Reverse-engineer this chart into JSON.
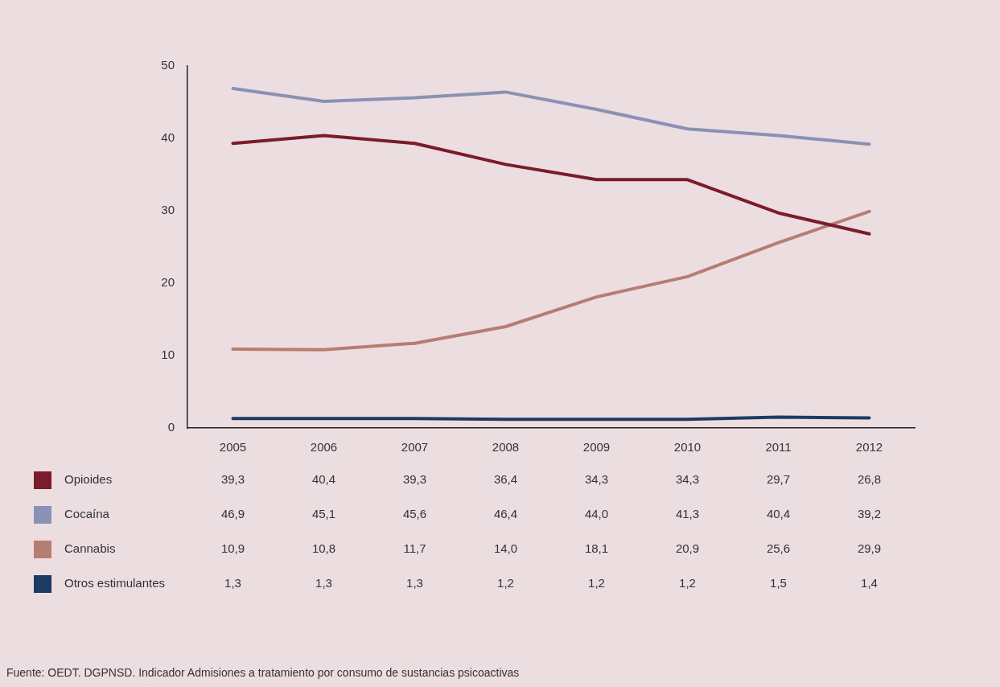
{
  "chart_data": {
    "type": "line",
    "categories": [
      "2005",
      "2006",
      "2007",
      "2008",
      "2009",
      "2010",
      "2011",
      "2012"
    ],
    "series": [
      {
        "name": "Opioides",
        "color": "#7a1c2a",
        "values": [
          39.3,
          40.4,
          39.3,
          36.4,
          34.3,
          34.3,
          29.7,
          26.8
        ],
        "value_labels": [
          "39,3",
          "40,4",
          "39,3",
          "36,4",
          "34,3",
          "34,3",
          "29,7",
          "26,8"
        ]
      },
      {
        "name": "Cocaína",
        "color": "#8a91b5",
        "values": [
          46.9,
          45.1,
          45.6,
          46.4,
          44.0,
          41.3,
          40.4,
          39.2
        ],
        "value_labels": [
          "46,9",
          "45,1",
          "45,6",
          "46,4",
          "44,0",
          "41,3",
          "40,4",
          "39,2"
        ]
      },
      {
        "name": "Cannabis",
        "color": "#b57d74",
        "values": [
          10.9,
          10.8,
          11.7,
          14.0,
          18.1,
          20.9,
          25.6,
          29.9
        ],
        "value_labels": [
          "10,9",
          "10,8",
          "11,7",
          "14,0",
          "18,1",
          "20,9",
          "25,6",
          "29,9"
        ]
      },
      {
        "name": "Otros estimulantes",
        "color": "#1c3a63",
        "values": [
          1.3,
          1.3,
          1.3,
          1.2,
          1.2,
          1.2,
          1.5,
          1.4
        ],
        "value_labels": [
          "1,3",
          "1,3",
          "1,3",
          "1,2",
          "1,2",
          "1,2",
          "1,5",
          "1,4"
        ]
      }
    ],
    "ylim": [
      0,
      50
    ],
    "yticks": [
      0,
      10,
      20,
      30,
      40,
      50
    ],
    "grid": false,
    "legend": "bottom",
    "marker": "none",
    "line_style": "solid",
    "annotations": [
      "Fuente: OEDT. DGPNSD. Indicador Admisiones a tratamiento por consumo de sustancias psicoactivas"
    ]
  }
}
